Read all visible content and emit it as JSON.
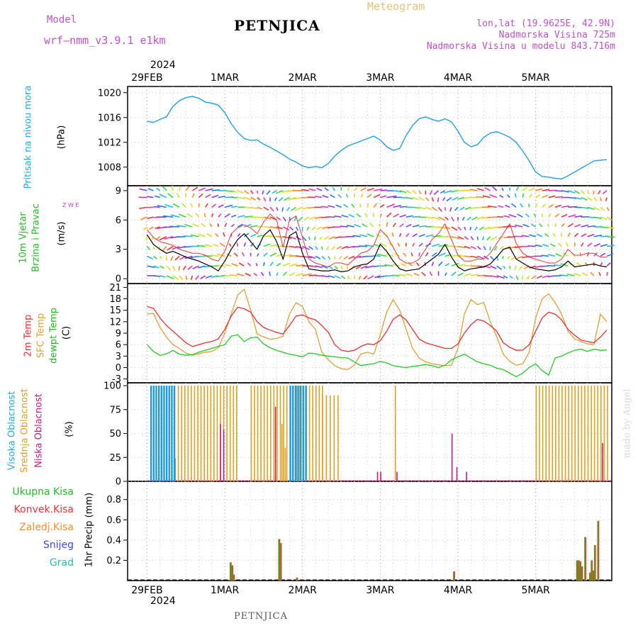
{
  "header": {
    "model_label": "Model",
    "model_name": "wrf–nmm_v3.9.1 e1km",
    "station": "PETNJICA",
    "product": "Meteogram",
    "coords": "lon,lat (19.9625E, 42.9N)",
    "altitude": "Nadmorska Visina 725m",
    "model_altitude": "Nadmorska Visina u modelu 843.716m"
  },
  "footer": {
    "station": "PETNJICA",
    "credit": "made by Angel"
  },
  "colors": {
    "pressure": "#1ea0e6",
    "temp2m": "#e83030",
    "sfc": "#e0a030",
    "dewpt": "#22cc22",
    "high": "#1e9be0",
    "mid": "#e0a020",
    "low": "#c0207a",
    "precip_total": "#22bb22",
    "precip_conv": "#ee3333",
    "precip_frozen": "#ff8c28",
    "snow": "#4444ee",
    "hail": "#22bbbb",
    "wind_dir": "#c040c0"
  },
  "chart_data": [
    {
      "type": "line",
      "name": "pressure",
      "ylabel_title": "Pritisak na nivou mora",
      "ylabel_unit": "(hPa)",
      "ylim": [
        1005,
        1021
      ],
      "yticks": [
        1008,
        1012,
        1016,
        1020
      ],
      "x_day_labels": [
        "29FEB",
        "1MAR",
        "2MAR",
        "3MAR",
        "4MAR",
        "5MAR"
      ],
      "x_year": "2024",
      "grid": true,
      "x": [
        0,
        2,
        4,
        6,
        8,
        10,
        12,
        14,
        16,
        18,
        20,
        22,
        24,
        26,
        28,
        30,
        32,
        34,
        36,
        38,
        40,
        42,
        44,
        46,
        48,
        50,
        52,
        54,
        56,
        58,
        60,
        62,
        64,
        66,
        68,
        70,
        72,
        74,
        76,
        78,
        80,
        82,
        84,
        86,
        88,
        90,
        92,
        94,
        96,
        98,
        100,
        102,
        104,
        106,
        108,
        110,
        112,
        114,
        116,
        118,
        120,
        122,
        124,
        126,
        128,
        130,
        132,
        134,
        136,
        138,
        140,
        142
      ],
      "values": [
        1015.4,
        1015.2,
        1015.7,
        1016.1,
        1017.8,
        1018.7,
        1019.2,
        1019.4,
        1019.1,
        1018.5,
        1018.3,
        1018.0,
        1016.8,
        1015.0,
        1013.6,
        1012.6,
        1012.3,
        1012.4,
        1011.7,
        1011.2,
        1010.6,
        1010.0,
        1009.3,
        1008.8,
        1008.2,
        1007.9,
        1008.1,
        1007.9,
        1008.6,
        1009.8,
        1010.7,
        1011.4,
        1011.8,
        1012.2,
        1012.6,
        1013.0,
        1012.4,
        1011.3,
        1010.7,
        1011.0,
        1013.1,
        1014.7,
        1015.8,
        1016.1,
        1015.7,
        1015.4,
        1015.8,
        1015.3,
        1013.8,
        1012.0,
        1011.3,
        1011.6,
        1012.8,
        1013.5,
        1013.7,
        1013.3,
        1012.8,
        1012.0,
        1010.6,
        1009.0,
        1007.2,
        1006.5,
        1006.4,
        1006.2,
        1006.1,
        1006.6,
        1007.2,
        1007.8,
        1008.4,
        1009.0,
        1009.1,
        1009.2
      ]
    },
    {
      "type": "line",
      "name": "wind",
      "ylabel_title": "10m Vjetar Brzina i Pravac",
      "ylabel_unit": "(m/s)",
      "compass": "Z W E",
      "ylim": [
        -0.5,
        9.5
      ],
      "yticks": [
        0,
        3,
        6,
        9
      ],
      "grid": true,
      "series": [
        {
          "role": "wind_speed",
          "x": [
            0,
            2,
            4,
            6,
            8,
            10,
            12,
            14,
            16,
            18,
            20,
            22,
            24,
            26,
            28,
            30,
            32,
            34,
            36,
            38,
            40,
            42,
            44,
            46,
            48,
            50,
            52,
            54,
            56,
            58,
            60,
            62,
            64,
            66,
            68,
            70,
            72,
            74,
            76,
            78,
            80,
            82,
            84,
            86,
            88,
            90,
            92,
            94,
            96,
            98,
            100,
            102,
            104,
            106,
            108,
            110,
            112,
            114,
            116,
            118,
            120,
            122,
            124,
            126,
            128,
            130,
            132,
            134,
            136,
            138,
            140,
            142
          ],
          "values": [
            4.5,
            3.5,
            3.0,
            2.6,
            2.8,
            2.5,
            2.2,
            2.0,
            1.8,
            1.5,
            1.2,
            0.8,
            1.8,
            3.0,
            4.0,
            4.6,
            3.8,
            3.0,
            4.4,
            5.0,
            3.8,
            2.0,
            4.4,
            4.8,
            2.6,
            1.0,
            0.9,
            0.8,
            0.8,
            0.9,
            0.7,
            0.8,
            1.2,
            1.4,
            1.5,
            2.0,
            3.5,
            2.8,
            1.8,
            1.0,
            0.8,
            0.9,
            1.0,
            1.5,
            2.0,
            2.5,
            3.5,
            2.2,
            1.2,
            0.8,
            1.0,
            1.1,
            1.2,
            1.5,
            2.2,
            3.0,
            3.2,
            2.0,
            1.6,
            1.2,
            1.0,
            0.9,
            0.8,
            0.9,
            1.2,
            1.8,
            1.2,
            1.3,
            1.4,
            1.5,
            1.3,
            1.2
          ]
        },
        {
          "role": "gust",
          "x": [
            0,
            2,
            4,
            6,
            8,
            10,
            12,
            14,
            16,
            18,
            20,
            22,
            24,
            26,
            28,
            30,
            32,
            34,
            36,
            38,
            40,
            42,
            44,
            46,
            48,
            50,
            52,
            54,
            56,
            58,
            60,
            62,
            64,
            66,
            68,
            70,
            72,
            74,
            76,
            78,
            80,
            82,
            84,
            86,
            88,
            90,
            92,
            94,
            96,
            98,
            100,
            102,
            104,
            106,
            108,
            110,
            112,
            114,
            116,
            118,
            120,
            122,
            124,
            126,
            128,
            130,
            132,
            134,
            136,
            138,
            140,
            142
          ],
          "values": [
            5.0,
            4.2,
            3.8,
            3.6,
            3.4,
            3.0,
            2.8,
            2.6,
            2.6,
            2.4,
            2.0,
            1.8,
            2.8,
            4.6,
            5.2,
            5.5,
            5.2,
            4.6,
            5.8,
            6.6,
            6.0,
            3.2,
            6.0,
            6.4,
            4.2,
            2.0,
            1.6,
            1.4,
            1.2,
            1.6,
            1.6,
            1.4,
            2.0,
            2.6,
            2.8,
            3.4,
            5.0,
            4.4,
            3.2,
            2.0,
            1.6,
            1.6,
            2.0,
            3.0,
            4.0,
            4.6,
            5.6,
            4.0,
            2.4,
            1.8,
            1.8,
            2.0,
            2.0,
            2.6,
            3.6,
            4.6,
            5.6,
            3.6,
            2.6,
            2.2,
            2.0,
            1.8,
            1.6,
            1.6,
            2.0,
            3.0,
            2.4,
            2.4,
            2.6,
            2.6,
            2.2,
            2.2
          ]
        }
      ]
    },
    {
      "type": "line",
      "name": "temperature",
      "ylabel_series": [
        "2m Temp",
        "SFC Temp",
        "dewpt Temp"
      ],
      "ylabel_unit": "(C)",
      "ylim": [
        -4,
        22
      ],
      "yticks": [
        -3,
        0,
        3,
        6,
        9,
        12,
        15,
        18,
        21
      ],
      "grid": true,
      "x": [
        0,
        2,
        4,
        6,
        8,
        10,
        12,
        14,
        16,
        18,
        20,
        22,
        24,
        26,
        28,
        30,
        32,
        34,
        36,
        38,
        40,
        42,
        44,
        46,
        48,
        50,
        52,
        54,
        56,
        58,
        60,
        62,
        64,
        66,
        68,
        70,
        72,
        74,
        76,
        78,
        80,
        82,
        84,
        86,
        88,
        90,
        92,
        94,
        96,
        98,
        100,
        102,
        104,
        106,
        108,
        110,
        112,
        114,
        116,
        118,
        120,
        122,
        124,
        126,
        128,
        130,
        132,
        134,
        136,
        138,
        140,
        142
      ],
      "series": [
        {
          "name": "2m Temp",
          "values": [
            16,
            15.5,
            13,
            11,
            9.5,
            8,
            6.5,
            5.5,
            6,
            6.5,
            6.8,
            7.5,
            10,
            13.5,
            15.8,
            15.4,
            14.5,
            12,
            10.5,
            9.8,
            9.2,
            8.8,
            11,
            13.5,
            13.8,
            13,
            12.5,
            11,
            9.2,
            6,
            4.5,
            4.2,
            4.5,
            5.5,
            6.2,
            6,
            7,
            9.5,
            12.6,
            13.8,
            12.5,
            10,
            7.5,
            6.5,
            6,
            5.5,
            5,
            5,
            6.2,
            9,
            11.2,
            12.6,
            12.2,
            11,
            9.5,
            6.5,
            5.3,
            4.5,
            4.6,
            6,
            9.5,
            13,
            14.5,
            14,
            12.5,
            10,
            8.5,
            7.2,
            6.8,
            6.5,
            8,
            9.8
          ]
        },
        {
          "name": "SFC Temp",
          "values": [
            14,
            14.2,
            10.5,
            8,
            6,
            5,
            3.8,
            3.2,
            3.6,
            4,
            4.2,
            5.2,
            9,
            14,
            19,
            20.5,
            15,
            8.8,
            8,
            7.4,
            7.6,
            8.2,
            14,
            17,
            16,
            12,
            10,
            4,
            2,
            0.5,
            -0.3,
            -0.5,
            0.6,
            3.5,
            4,
            3.5,
            8.5,
            14.5,
            17.8,
            15,
            10,
            5,
            2.5,
            1.5,
            1,
            0.7,
            0.5,
            0.6,
            5,
            14,
            17.8,
            16.5,
            17,
            12,
            8,
            3.5,
            1.6,
            0.6,
            1,
            4,
            13,
            18,
            19.3,
            17,
            14,
            9.5,
            7.5,
            6.8,
            6.2,
            6,
            14,
            12
          ]
        },
        {
          "name": "dewpt Temp",
          "values": [
            6,
            4.2,
            3.2,
            3.6,
            4.5,
            3.5,
            3.2,
            3.4,
            4,
            4.5,
            5,
            5.5,
            6,
            8.2,
            8.6,
            6.8,
            7.8,
            8,
            6.2,
            5.2,
            4.5,
            4,
            3.5,
            3.2,
            2.8,
            3.8,
            3.6,
            3.2,
            3,
            2.8,
            2.6,
            2.5,
            1.5,
            0.5,
            0.8,
            1,
            1.6,
            1.2,
            0.5,
            0.2,
            0,
            0.3,
            0.5,
            0.8,
            0.5,
            0,
            0.6,
            2,
            2.8,
            3.5,
            2.5,
            1.5,
            1,
            0.6,
            -0.2,
            -0.5,
            -1.5,
            -2.4,
            -1.5,
            0,
            1,
            -0.8,
            -2,
            2.5,
            3,
            3.8,
            4.5,
            4.8,
            4.2,
            4.8,
            4.5,
            4.6
          ]
        }
      ]
    },
    {
      "type": "bar",
      "name": "cloudiness",
      "ylabel_series": [
        "Visoka Oblacnost",
        "Srednja Oblacnost",
        "Niska Oblacnost"
      ],
      "ylabel_unit": "(%)",
      "ylim": [
        0,
        103
      ],
      "yticks": [
        0,
        25,
        50,
        75,
        100
      ],
      "grid": true,
      "segments": [
        {
          "name": "Visoka Oblacnost",
          "from": 1,
          "to": 8.5,
          "value": 100,
          "step": 0.8
        },
        {
          "name": "Srednja Oblacnost",
          "from": 9.5,
          "to": 28,
          "value": 100,
          "step": 1
        },
        {
          "name": "Srednja Oblacnost",
          "from": 32,
          "to": 54,
          "value": 100,
          "step": 1
        },
        {
          "name": "Visoka Oblacnost",
          "from": 44,
          "to": 49,
          "value": 100,
          "step": 0.8
        },
        {
          "name": "Srednja Oblacnost",
          "from": 54,
          "to": 60,
          "value": 90,
          "step": 1.2
        },
        {
          "name": "Srednja Oblacnost",
          "from": 120,
          "to": 142,
          "value": 100,
          "step": 1
        }
      ],
      "bars": [
        {
          "name": "Visoka Oblacnost",
          "x": 8.5,
          "value": 24
        },
        {
          "name": "Niska Oblacnost",
          "x": 22.5,
          "value": 60
        },
        {
          "name": "Niska Oblacnost",
          "x": 23.5,
          "value": 54
        },
        {
          "name": "Niska Oblacnost",
          "x": 39.5,
          "value": 78
        },
        {
          "name": "Srednja Oblacnost",
          "x": 41.5,
          "value": 60
        },
        {
          "name": "Srednja Oblacnost",
          "x": 42.5,
          "value": 35
        },
        {
          "name": "Niska Oblacnost",
          "x": 71,
          "value": 10
        },
        {
          "name": "Niska Oblacnost",
          "x": 72,
          "value": 10
        },
        {
          "name": "Srednja Oblacnost",
          "x": 76.5,
          "value": 100
        },
        {
          "name": "Niska Oblacnost",
          "x": 77,
          "value": 10
        },
        {
          "name": "Niska Oblacnost",
          "x": 94,
          "value": 50
        },
        {
          "name": "Niska Oblacnost",
          "x": 95.5,
          "value": 15
        },
        {
          "name": "Niska Oblacnost",
          "x": 98.5,
          "value": 10
        },
        {
          "name": "Niska Oblacnost",
          "x": 140.5,
          "value": 40
        }
      ]
    },
    {
      "type": "bar",
      "name": "precipitation",
      "legend": [
        "Ukupna Kisa",
        "Konvek.Kisa",
        "Zaledj.Kisa",
        "Snijeg",
        "Grad"
      ],
      "ylabel": "1hr Precip (mm)",
      "ylim": [
        0,
        0.98
      ],
      "yticks": [
        0.2,
        0.4,
        0.6,
        0.8
      ],
      "grid": true,
      "bars": [
        {
          "x": 25.5,
          "value": 0.18
        },
        {
          "x": 26.0,
          "value": 0.15
        },
        {
          "x": 26.5,
          "value": 0.06
        },
        {
          "x": 40.5,
          "value": 0.41
        },
        {
          "x": 41.0,
          "value": 0.37
        },
        {
          "x": 46.0,
          "value": 0.03
        },
        {
          "x": 94.5,
          "value": 0.09
        },
        {
          "x": 132.5,
          "value": 0.2
        },
        {
          "x": 133.0,
          "value": 0.2
        },
        {
          "x": 133.5,
          "value": 0.19
        },
        {
          "x": 134.0,
          "value": 0.14
        },
        {
          "x": 135.0,
          "value": 0.43
        },
        {
          "x": 136.5,
          "value": 0.08
        },
        {
          "x": 137.0,
          "value": 0.2
        },
        {
          "x": 137.5,
          "value": 0.1
        },
        {
          "x": 138.0,
          "value": 0.35
        },
        {
          "x": 139.0,
          "value": 0.59
        }
      ]
    }
  ]
}
